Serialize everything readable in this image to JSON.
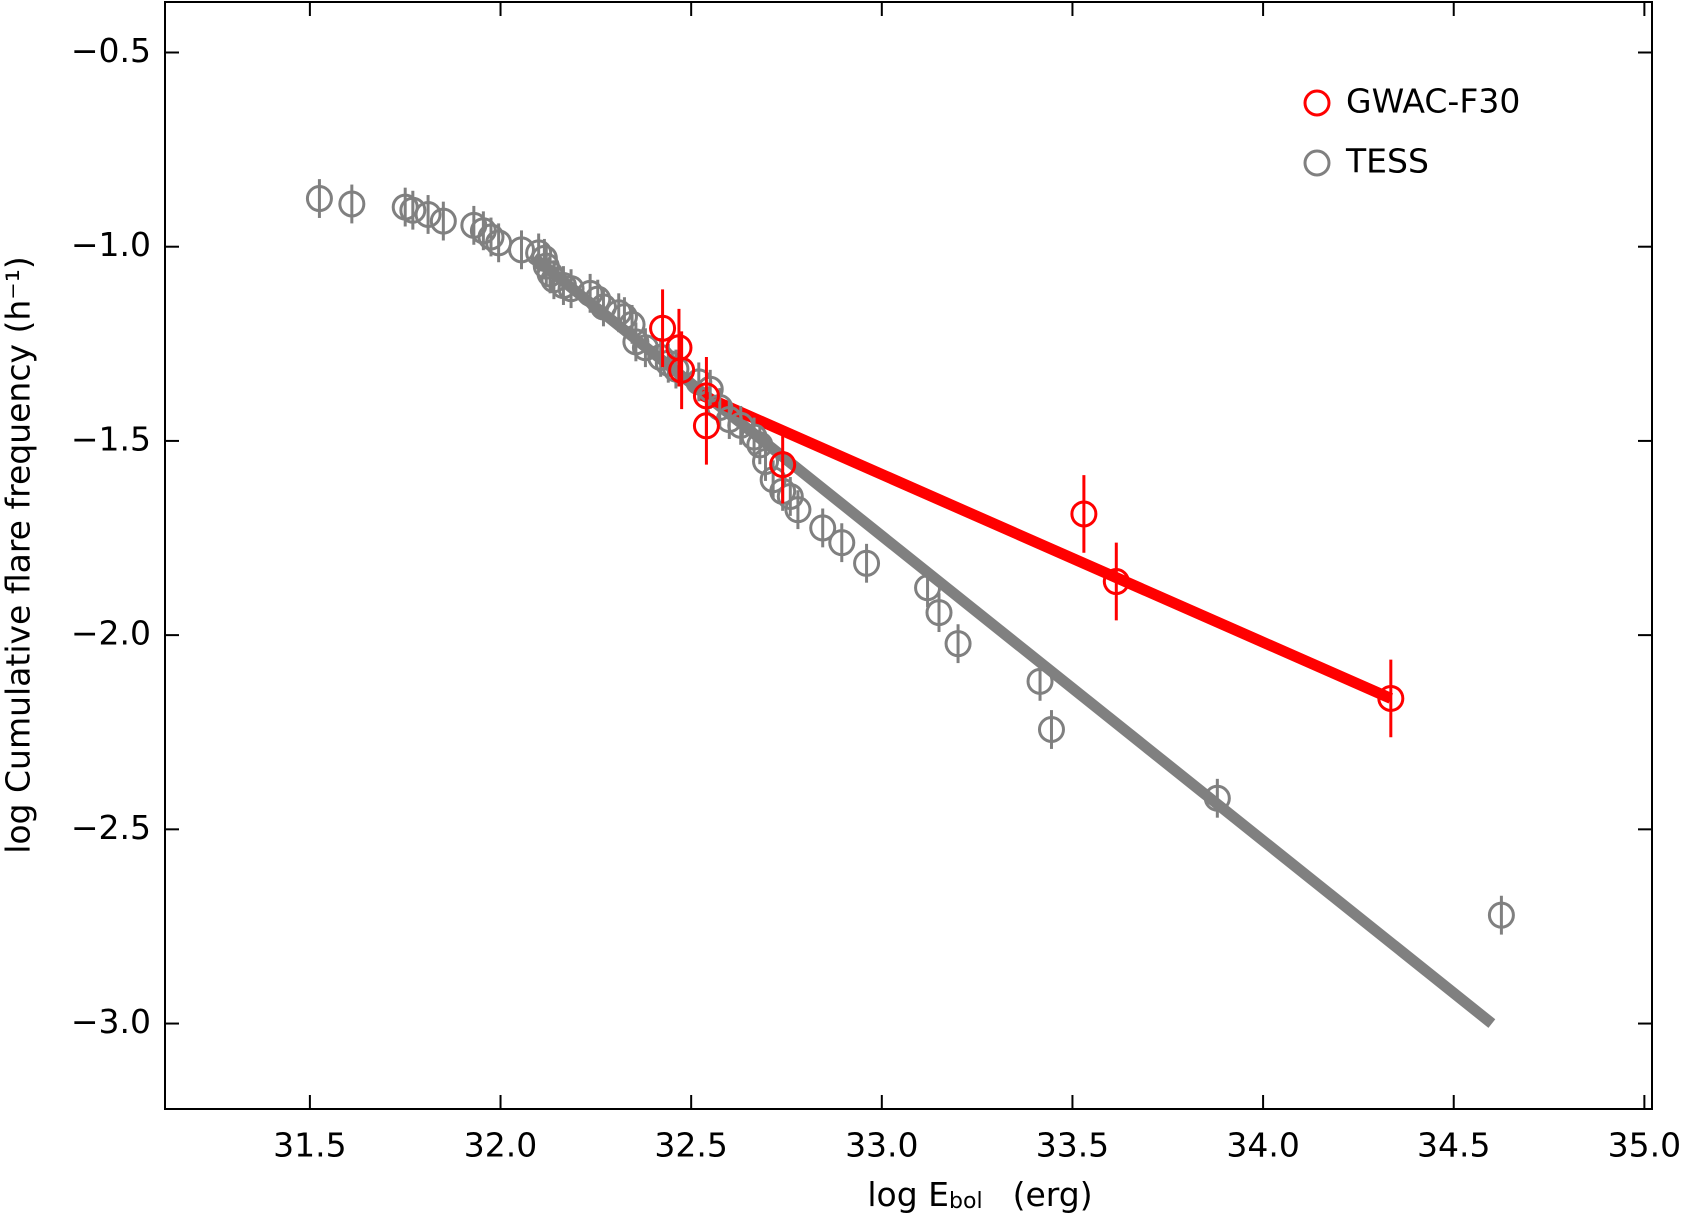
{
  "chart_data": {
    "type": "scatter",
    "xlabel": "log E",
    "xlabel_sub": "bol",
    "xlabel_unit": "(erg)",
    "ylabel": "log Cumulative flare frequency (h⁻¹)",
    "xlim": [
      31.12,
      35.02
    ],
    "ylim": [
      -3.22,
      -0.37
    ],
    "xticks": [
      31.5,
      {
        "value": 32,
        "label": "32.0"
      },
      32.5,
      {
        "value": 33,
        "label": "33.0"
      },
      33.5,
      {
        "value": 34,
        "label": "34.0"
      },
      34.5,
      {
        "value": 35,
        "label": "35.0"
      }
    ],
    "yticks": [
      {
        "value": -0.5,
        "label": "−0.5"
      },
      {
        "value": -1.0,
        "label": "−1.0"
      },
      {
        "value": -1.5,
        "label": "−1.5"
      },
      {
        "value": -2.0,
        "label": "−2.0"
      },
      {
        "value": -2.5,
        "label": "−2.5"
      },
      {
        "value": -3.0,
        "label": "−3.0"
      }
    ],
    "legend": "upper right",
    "series": [
      {
        "name": "GWAC-F30",
        "color": "#ff0000",
        "x": [
          32.425,
          32.468,
          32.475,
          32.54,
          32.54,
          32.74,
          33.53,
          33.615,
          34.335
        ],
        "y": [
          -1.21,
          -1.26,
          -1.318,
          -1.384,
          -1.461,
          -1.561,
          -1.688,
          -1.862,
          -2.163
        ],
        "errors": [
          0.1,
          0.1,
          0.1,
          0.1,
          0.1,
          0.1,
          0.1,
          0.1,
          0.1
        ]
      },
      {
        "name": "TESS",
        "color": "#808080",
        "x": [
          31.525,
          31.61,
          31.75,
          31.77,
          31.81,
          31.85,
          31.93,
          31.955,
          31.975,
          31.995,
          32.055,
          32.1,
          32.115,
          32.12,
          32.13,
          32.14,
          32.165,
          32.185,
          32.235,
          32.255,
          32.27,
          32.31,
          32.325,
          32.345,
          32.355,
          32.38,
          32.42,
          32.44,
          32.46,
          32.52,
          32.55,
          32.575,
          32.6,
          32.63,
          32.665,
          32.68,
          32.695,
          32.715,
          32.74,
          32.76,
          32.78,
          32.845,
          32.895,
          32.96,
          33.12,
          33.15,
          33.2,
          33.415,
          33.445,
          33.88,
          34.625
        ],
        "y": [
          -0.876,
          -0.89,
          -0.898,
          -0.906,
          -0.917,
          -0.934,
          -0.945,
          -0.959,
          -0.975,
          -0.99,
          -1.008,
          -1.016,
          -1.03,
          -1.05,
          -1.07,
          -1.085,
          -1.1,
          -1.108,
          -1.12,
          -1.135,
          -1.155,
          -1.17,
          -1.18,
          -1.2,
          -1.245,
          -1.26,
          -1.285,
          -1.3,
          -1.315,
          -1.348,
          -1.367,
          -1.414,
          -1.445,
          -1.46,
          -1.49,
          -1.51,
          -1.553,
          -1.6,
          -1.63,
          -1.643,
          -1.677,
          -1.724,
          -1.762,
          -1.815,
          -1.878,
          -1.942,
          -2.022,
          -2.119,
          -2.243,
          -2.42,
          -2.721
        ],
        "errors": [
          0.05,
          0.05,
          0.05,
          0.05,
          0.05,
          0.05,
          0.05,
          0.05,
          0.05,
          0.05,
          0.05,
          0.05,
          0.05,
          0.05,
          0.05,
          0.05,
          0.05,
          0.05,
          0.05,
          0.05,
          0.05,
          0.05,
          0.05,
          0.05,
          0.05,
          0.05,
          0.05,
          0.05,
          0.05,
          0.05,
          0.05,
          0.05,
          0.05,
          0.05,
          0.05,
          0.05,
          0.05,
          0.05,
          0.05,
          0.05,
          0.05,
          0.05,
          0.05,
          0.05,
          0.05,
          0.05,
          0.05,
          0.05,
          0.05,
          0.05,
          0.05
        ]
      }
    ],
    "fits": [
      {
        "color": "#808080",
        "x": [
          32.087,
          34.6
        ],
        "y": [
          -1.028,
          -3.0
        ]
      },
      {
        "color": "#ff0000",
        "x": [
          32.525,
          34.335
        ],
        "y": [
          -1.381,
          -2.163
        ]
      }
    ]
  }
}
